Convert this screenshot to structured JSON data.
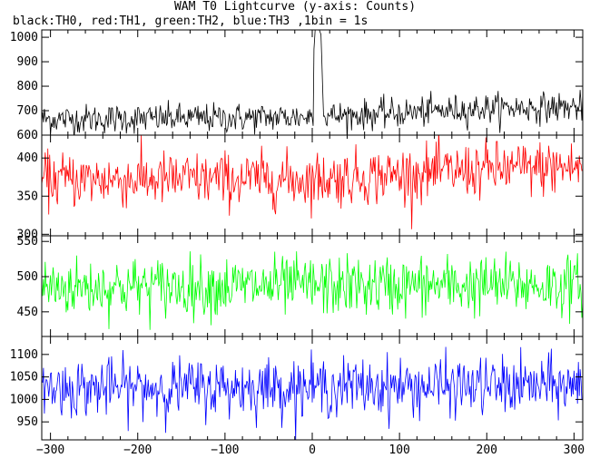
{
  "chart_data": {
    "type": "line",
    "title": "WAM T0 Lightcurve (y-axis: Counts)",
    "subtitle": "black:TH0, red:TH1, green:TH2, blue:TH3 ,1bin = 1s",
    "x_range": [
      -310,
      310
    ],
    "x_ticks": [
      -300,
      -200,
      -100,
      0,
      100,
      200,
      300
    ],
    "panels": [
      {
        "series": "TH0",
        "color": "#000000",
        "ylim": [
          600,
          1030
        ],
        "yticks": [
          600,
          700,
          800,
          900,
          1000
        ],
        "baseline": [
          [
            -310,
            665
          ],
          [
            -100,
            670
          ],
          [
            0,
            675
          ],
          [
            100,
            690
          ],
          [
            200,
            710
          ],
          [
            310,
            715
          ]
        ],
        "noise": 30,
        "peak": {
          "x": 4,
          "value": 1030,
          "halfwidth": 9,
          "rise": 2,
          "tail": 6
        }
      },
      {
        "series": "TH1",
        "color": "#ff0000",
        "ylim": [
          298,
          430
        ],
        "yticks": [
          300,
          350,
          400
        ],
        "baseline": [
          [
            -310,
            372
          ],
          [
            0,
            372
          ],
          [
            100,
            378
          ],
          [
            200,
            385
          ],
          [
            310,
            388
          ]
        ],
        "noise": 18
      },
      {
        "series": "TH2",
        "color": "#00ff00",
        "ylim": [
          415,
          558
        ],
        "yticks": [
          450,
          500,
          550
        ],
        "baseline": [
          [
            -310,
            485
          ],
          [
            310,
            488
          ]
        ],
        "noise": 21
      },
      {
        "series": "TH3",
        "color": "#0000ff",
        "ylim": [
          910,
          1140
        ],
        "yticks": [
          950,
          1000,
          1050,
          1100
        ],
        "baseline": [
          [
            -310,
            1025
          ],
          [
            310,
            1030
          ]
        ],
        "noise": 32
      }
    ]
  }
}
